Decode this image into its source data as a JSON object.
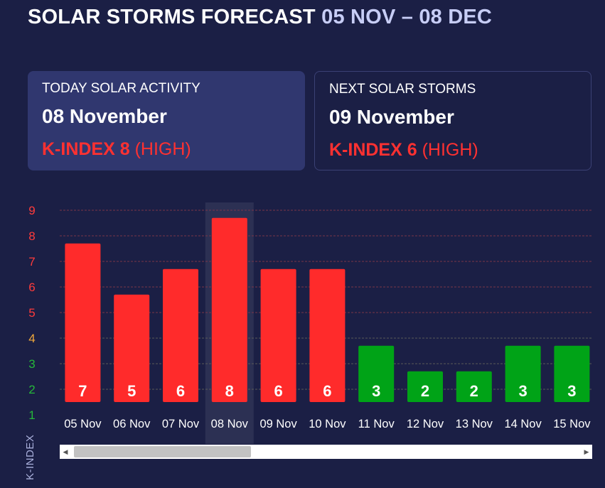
{
  "header": {
    "title": "SOLAR STORMS FORECAST",
    "range": "05 NOV – 08 DEC"
  },
  "cards": {
    "today": {
      "label": "TODAY SOLAR ACTIVITY",
      "date": "08 November",
      "kindex_label": "K-INDEX",
      "kindex_value": "8",
      "level": "(HIGH)"
    },
    "next": {
      "label": "NEXT SOLAR STORMS",
      "date": "09 November",
      "kindex_label": "K-INDEX",
      "kindex_value": "6",
      "level": "(HIGH)"
    }
  },
  "chart_data": {
    "type": "bar",
    "categories": [
      "05 Nov",
      "06 Nov",
      "07 Nov",
      "08 Nov",
      "09 Nov",
      "10 Nov",
      "11 Nov",
      "12 Nov",
      "13 Nov",
      "14 Nov",
      "15 Nov"
    ],
    "values": [
      7,
      5,
      6,
      8,
      6,
      6,
      3,
      2,
      2,
      3,
      3
    ],
    "ylabel": "K-INDEX",
    "ylim": [
      1,
      9
    ],
    "yticks": [
      "1",
      "2",
      "3",
      "4",
      "5",
      "6",
      "7",
      "8",
      "9"
    ],
    "highlighted_category": "08 Nov",
    "grid": true,
    "colors": {
      "high": "#ff2b2b",
      "low": "#00a317",
      "tick_low": "#25b83a",
      "tick_mid": "#f2a93b",
      "tick_high": "#ff3b3b"
    }
  },
  "scrollbar": {
    "left_arrow": "◀",
    "right_arrow": "▶"
  }
}
